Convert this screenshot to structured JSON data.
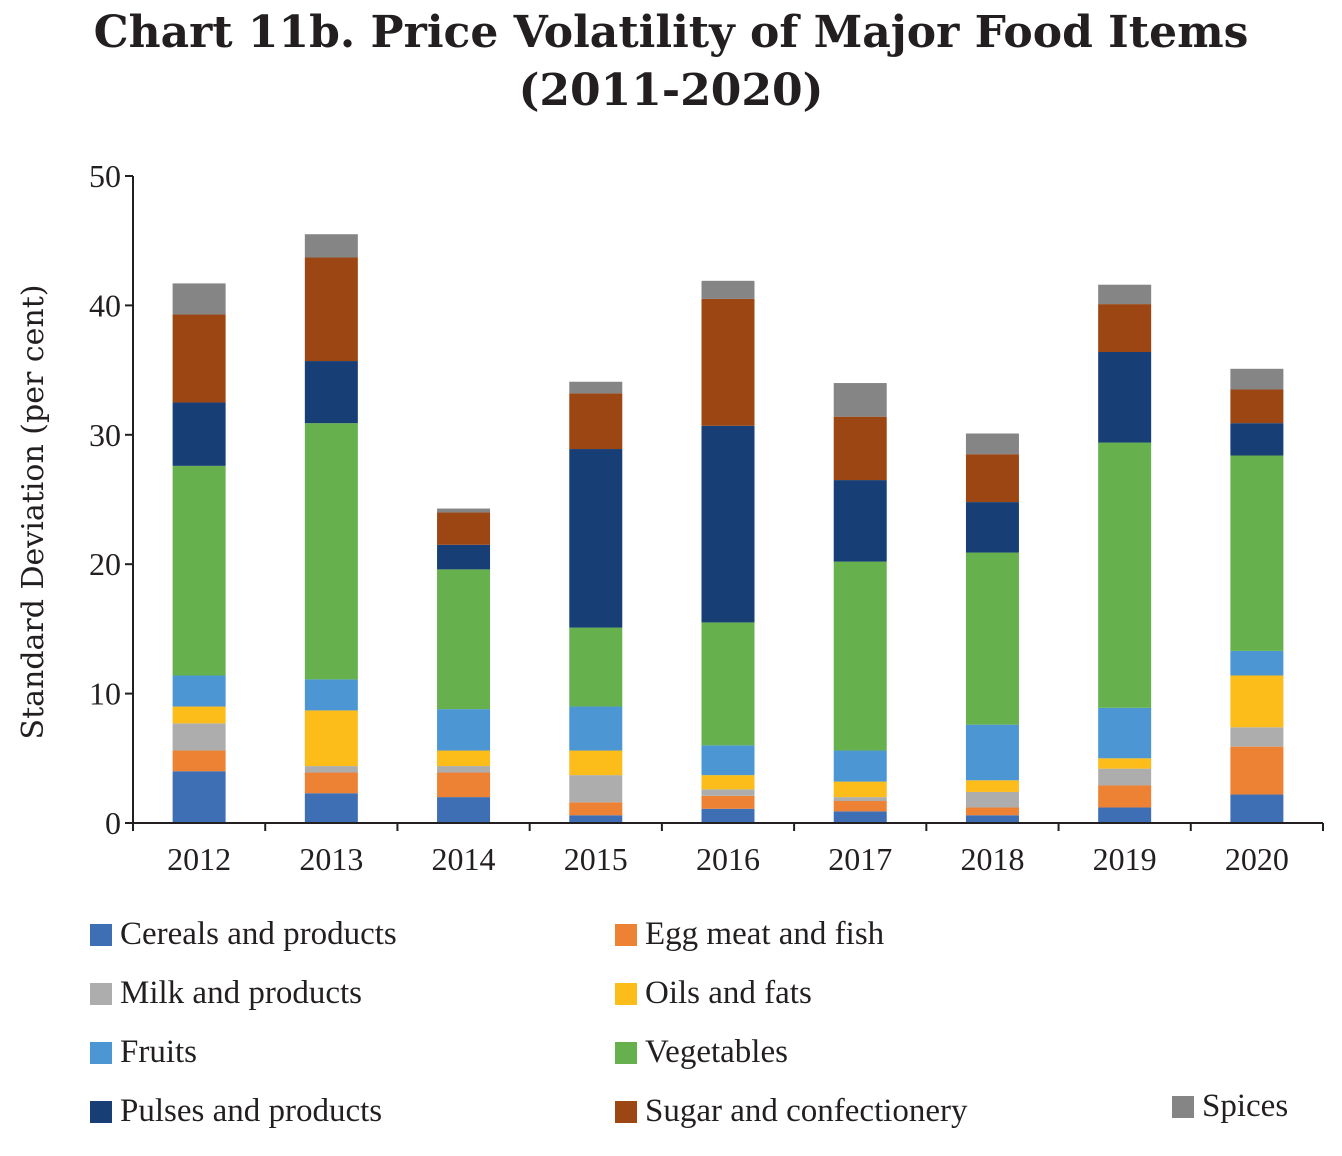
{
  "chart_data": {
    "type": "bar",
    "stacked": true,
    "title": "Chart 11b. Price Volatility of Major Food Items",
    "subtitle": "(2011-2020)",
    "xlabel": "",
    "ylabel": "Standard Deviation (per cent)",
    "ylim": [
      0,
      50
    ],
    "yticks": [
      0,
      10,
      20,
      30,
      40,
      50
    ],
    "grid": false,
    "legend_position": "bottom",
    "categories": [
      "2012",
      "2013",
      "2014",
      "2015",
      "2016",
      "2017",
      "2018",
      "2019",
      "2020"
    ],
    "series": [
      {
        "name": "Cereals and products",
        "color": "#3e6fb5",
        "values": [
          4.0,
          2.3,
          2.0,
          0.6,
          1.1,
          0.9,
          0.6,
          1.2,
          2.2
        ]
      },
      {
        "name": "Egg meat and fish",
        "color": "#ee8234",
        "values": [
          1.6,
          1.6,
          1.9,
          1.0,
          1.0,
          0.8,
          0.6,
          1.7,
          3.7
        ]
      },
      {
        "name": "Milk and products",
        "color": "#adadad",
        "values": [
          2.1,
          0.5,
          0.5,
          2.1,
          0.5,
          0.3,
          1.2,
          1.3,
          1.5
        ]
      },
      {
        "name": "Oils and fats",
        "color": "#fcbd1a",
        "values": [
          1.3,
          4.3,
          1.2,
          1.9,
          1.1,
          1.2,
          0.9,
          0.8,
          4.0
        ]
      },
      {
        "name": "Fruits",
        "color": "#4b96d3",
        "values": [
          2.4,
          2.4,
          3.2,
          3.4,
          2.3,
          2.4,
          4.3,
          3.9,
          1.9
        ]
      },
      {
        "name": "Vegetables",
        "color": "#66b04e",
        "values": [
          16.2,
          19.8,
          10.8,
          6.1,
          9.5,
          14.6,
          13.3,
          20.5,
          15.1
        ]
      },
      {
        "name": "Pulses and products",
        "color": "#173f76",
        "values": [
          4.9,
          4.8,
          1.9,
          13.8,
          15.2,
          6.3,
          3.9,
          7.0,
          2.5
        ]
      },
      {
        "name": "Sugar and confectionery",
        "color": "#9b4613",
        "values": [
          6.8,
          8.0,
          2.5,
          4.3,
          9.8,
          4.9,
          3.7,
          3.7,
          2.6
        ]
      },
      {
        "name": "Spices",
        "color": "#858585",
        "values": [
          2.4,
          1.8,
          0.3,
          0.9,
          1.4,
          2.6,
          1.6,
          1.5,
          1.6
        ]
      }
    ]
  }
}
